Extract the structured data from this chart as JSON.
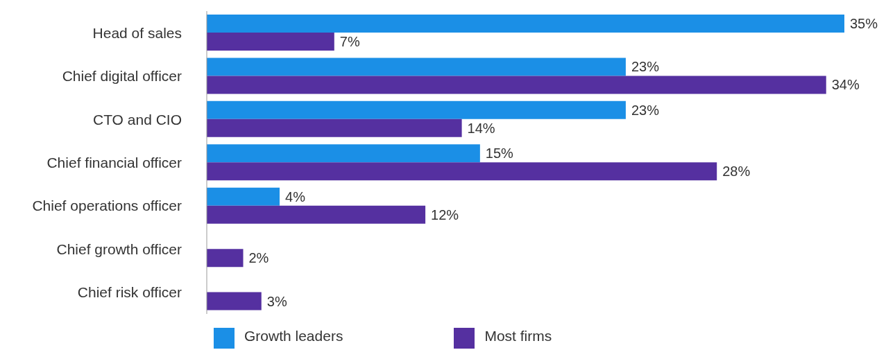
{
  "chart_data": {
    "type": "bar",
    "orientation": "horizontal",
    "categories": [
      "Head of sales",
      "Chief digital officer",
      "CTO and CIO",
      "Chief financial officer",
      "Chief operations officer",
      "Chief growth officer",
      "Chief risk officer"
    ],
    "series": [
      {
        "name": "Growth leaders",
        "color": "#1b8fe6",
        "values": [
          35,
          23,
          23,
          15,
          4,
          null,
          null
        ],
        "value_labels": [
          "35%",
          "23%",
          "23%",
          "15%",
          "4%",
          null,
          null
        ]
      },
      {
        "name": "Most firms",
        "color": "#5530a0",
        "values": [
          7,
          34,
          14,
          28,
          12,
          2,
          3
        ],
        "value_labels": [
          "7%",
          "34%",
          "14%",
          "28%",
          "12%",
          "2%",
          "3%"
        ]
      }
    ],
    "legend": "bottom left",
    "grid": false
  }
}
